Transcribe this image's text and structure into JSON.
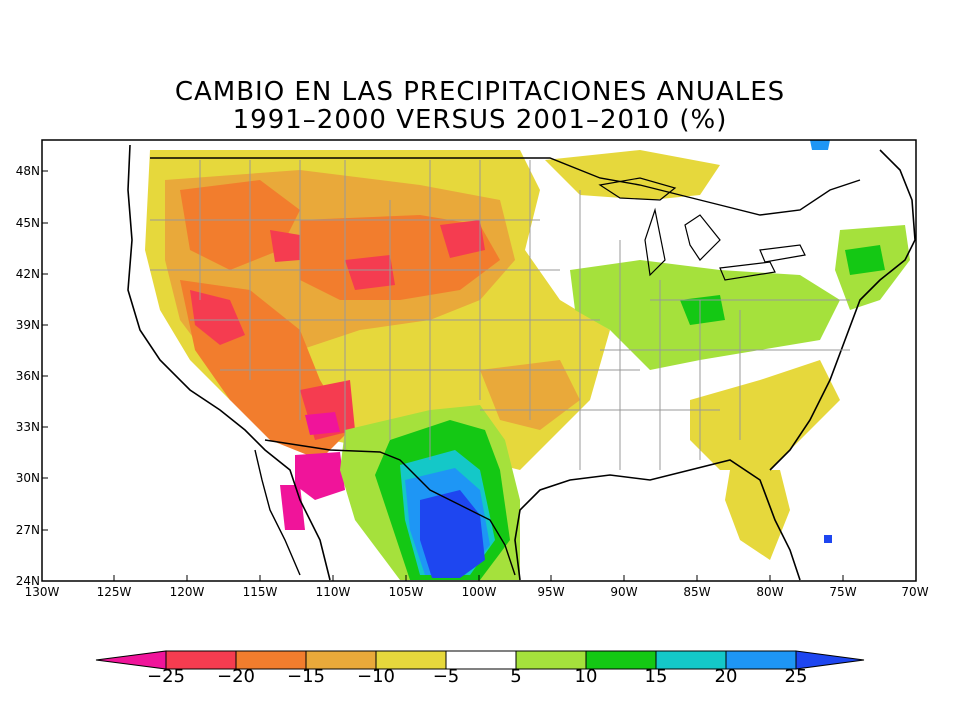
{
  "title": {
    "line1": "CAMBIO EN LAS PRECIPITACIONES ANUALES",
    "line2": "1991–2000 VERSUS 2001–2010 (%)"
  },
  "lat_labels": [
    "48N",
    "45N",
    "42N",
    "39N",
    "36N",
    "33N",
    "30N",
    "27N",
    "24N"
  ],
  "lon_labels": [
    "130W",
    "125W",
    "120W",
    "115W",
    "110W",
    "105W",
    "100W",
    "95W",
    "90W",
    "85W",
    "80W",
    "75W",
    "70W"
  ],
  "colorbar": {
    "labels": [
      "−25",
      "−20",
      "−15",
      "−10",
      "−5",
      "5",
      "10",
      "15",
      "20",
      "25"
    ],
    "colors": [
      "#f0149a",
      "#f53c50",
      "#f27d2d",
      "#e9a93a",
      "#e6d83c",
      "#ffffff",
      "#a5e13c",
      "#14c814",
      "#14c8c8",
      "#1e96f5",
      "#1e46f0"
    ]
  },
  "map_region": "Contiguous United States"
}
